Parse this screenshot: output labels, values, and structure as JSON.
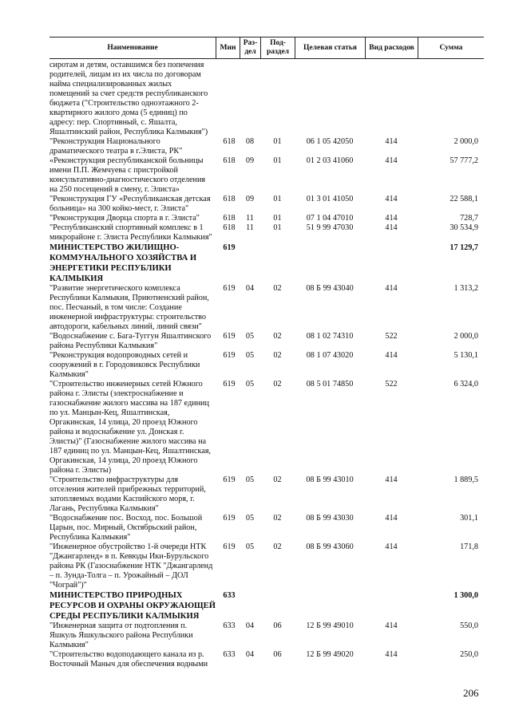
{
  "header": {
    "name": "Наименование",
    "min": "Мин",
    "razdel": "Раз-дел",
    "podrazdel": "Под-раздел",
    "target": "Целевая статья",
    "vid": "Вид расходов",
    "sum": "Сумма"
  },
  "rows": [
    {
      "bold": false,
      "lines": [
        "сиротам и детям, оставшимся без попечения",
        "родителей, лицам из их числа по договорам",
        "найма специализированных жилых",
        "помещений за счет средств республиканского",
        "бюджета (\"Строительство одноэтажного 2-",
        "квартирного жилого дома (5 единиц) по",
        "адресу: пер. Спортивный, с. Яшалта,",
        "Яшалтинский район, Республика Калмыкия\")"
      ],
      "min": "",
      "razdel": "",
      "podrazdel": "",
      "target": "",
      "vid": "",
      "sum": ""
    },
    {
      "bold": false,
      "lines": [
        "\"Реконструкция Национального",
        "драматического театра в г.Элиста, РК\""
      ],
      "min": "618",
      "razdel": "08",
      "podrazdel": "01",
      "target": "06 1 05 42050",
      "vid": "414",
      "sum": "2 000,0"
    },
    {
      "bold": false,
      "lines": [
        "«Реконструкция республиканской больницы",
        "имени П.П. Жемчуева с пристройкой",
        "консультативно-диагностического отделения",
        "на 250 посещений в смену, г. Элиста»"
      ],
      "min": "618",
      "razdel": "09",
      "podrazdel": "01",
      "target": "01 2 03 41060",
      "vid": "414",
      "sum": "57 777,2"
    },
    {
      "bold": false,
      "lines": [
        "\"Реконструкция ГУ «Республиканская детская",
        "больница» на 300 койко-мест, г. Элиста\""
      ],
      "min": "618",
      "razdel": "09",
      "podrazdel": "01",
      "target": "01 3 01 41050",
      "vid": "414",
      "sum": "22 588,1"
    },
    {
      "bold": false,
      "lines": [
        "\"Реконструкция Дворца спорта в г. Элиста\""
      ],
      "min": "618",
      "razdel": "11",
      "podrazdel": "01",
      "target": "07 1 04 47010",
      "vid": "414",
      "sum": "728,7"
    },
    {
      "bold": false,
      "lines": [
        "\"Республиканский спортивный комплекс в 1",
        "микрорайоне г. Элиста Республики Калмыкия\""
      ],
      "min": "618",
      "razdel": "11",
      "podrazdel": "01",
      "target": "51 9 99 47030",
      "vid": "414",
      "sum": "30 534,9"
    },
    {
      "bold": true,
      "lines": [
        "МИНИСТЕРСТВО ЖИЛИЩНО-",
        "КОММУНАЛЬНОГО ХОЗЯЙСТВА И",
        "ЭНЕРГЕТИКИ РЕСПУБЛИКИ",
        "КАЛМЫКИЯ"
      ],
      "min": "619",
      "razdel": "",
      "podrazdel": "",
      "target": "",
      "vid": "",
      "sum": "17 129,7"
    },
    {
      "bold": false,
      "lines": [
        "\"Развитие энергетического комплекса",
        "Республики Калмыкия, Приютненский район,",
        "пос. Песчаный, в том числе: Создание",
        "инженерной инфраструктуры: строительство",
        "автодороги, кабельных линий, линий связи\""
      ],
      "min": "619",
      "razdel": "04",
      "podrazdel": "02",
      "target": "08 Б 99 43040",
      "vid": "414",
      "sum": "1 313,2"
    },
    {
      "bold": false,
      "lines": [
        "\"Водоснабжение с. Бага-Туггун Яшалтинского",
        "района Республики Калмыкия\""
      ],
      "min": "619",
      "razdel": "05",
      "podrazdel": "02",
      "target": "08 1 02 74310",
      "vid": "522",
      "sum": "2 000,0"
    },
    {
      "bold": false,
      "lines": [
        "\"Реконструкция водопроводных сетей и",
        "сооружений в г. Городовиковск Республики",
        "Калмыкия\""
      ],
      "min": "619",
      "razdel": "05",
      "podrazdel": "02",
      "target": "08 1 07 43020",
      "vid": "414",
      "sum": "5 130,1"
    },
    {
      "bold": false,
      "lines": [
        "\"Строительство инженерных сетей Южного",
        "района г. Элисты (электроснабжение и",
        "газоснабжение жилого массива на 187 единиц",
        "по ул. Манцын-Кец, Яшалтинская,",
        "Оргакинская, 14 улица, 20 проезд Южного",
        "района и водоснабжение ул. Донская г.",
        "Элисты)\" (Газоснабжение жилого массива на",
        "187 единиц по ул. Манцын-Кец, Яшалтинская,",
        "Оргакинская, 14 улица, 20 проезд Южного",
        "района г. Элисты)"
      ],
      "min": "619",
      "razdel": "05",
      "podrazdel": "02",
      "target": "08 5 01 74850",
      "vid": "522",
      "sum": "6 324,0"
    },
    {
      "bold": false,
      "lines": [
        "\"Строительство инфраструктуры для",
        "отселения жителей прибрежных территорий,",
        "затопляемых водами Каспийского моря, г.",
        "Лагань, Республика Калмыкия\""
      ],
      "min": "619",
      "razdel": "05",
      "podrazdel": "02",
      "target": "08 Б 99 43010",
      "vid": "414",
      "sum": "1 889,5"
    },
    {
      "bold": false,
      "lines": [
        "\"Водоснабжение пос. Восход, пос. Большой",
        "Царын, пос. Мирный, Октябрьский район,",
        "Республика Калмыкия\""
      ],
      "min": "619",
      "razdel": "05",
      "podrazdel": "02",
      "target": "08 Б 99 43030",
      "vid": "414",
      "sum": "301,1"
    },
    {
      "bold": false,
      "lines": [
        "\"Инженерное обустройство 1-й очереди НТК",
        "\"Джангарленд» в п. Кевюды Ики-Бурульского",
        "района РК (Газоснабжение НТК \"Джангарленд",
        "– п. Зунда-Толга – п. Урожайный – ДОЛ",
        "\"Чограй\")\""
      ],
      "min": "619",
      "razdel": "05",
      "podrazdel": "02",
      "target": "08 Б 99 43060",
      "vid": "414",
      "sum": "171,8"
    },
    {
      "bold": true,
      "lines": [
        "МИНИСТЕРСТВО ПРИРОДНЫХ",
        "РЕСУРСОВ И ОХРАНЫ ОКРУЖАЮЩЕЙ",
        "СРЕДЫ РЕСПУБЛИКИ КАЛМЫКИЯ"
      ],
      "min": "633",
      "razdel": "",
      "podrazdel": "",
      "target": "",
      "vid": "",
      "sum": "1 300,0"
    },
    {
      "bold": false,
      "lines": [
        "\"Инженерная защита от подтопления п.",
        "Яшкуль Яшкульского района Республики",
        "Калмыкия\""
      ],
      "min": "633",
      "razdel": "04",
      "podrazdel": "06",
      "target": "12 Б 99 49010",
      "vid": "414",
      "sum": "550,0"
    },
    {
      "bold": false,
      "lines": [
        "\"Строительство водоподающего канала из р.",
        "Восточный Маныч для обеспечения водными"
      ],
      "min": "633",
      "razdel": "04",
      "podrazdel": "06",
      "target": "12 Б 99 49020",
      "vid": "414",
      "sum": "250,0"
    }
  ],
  "page_number": "206"
}
